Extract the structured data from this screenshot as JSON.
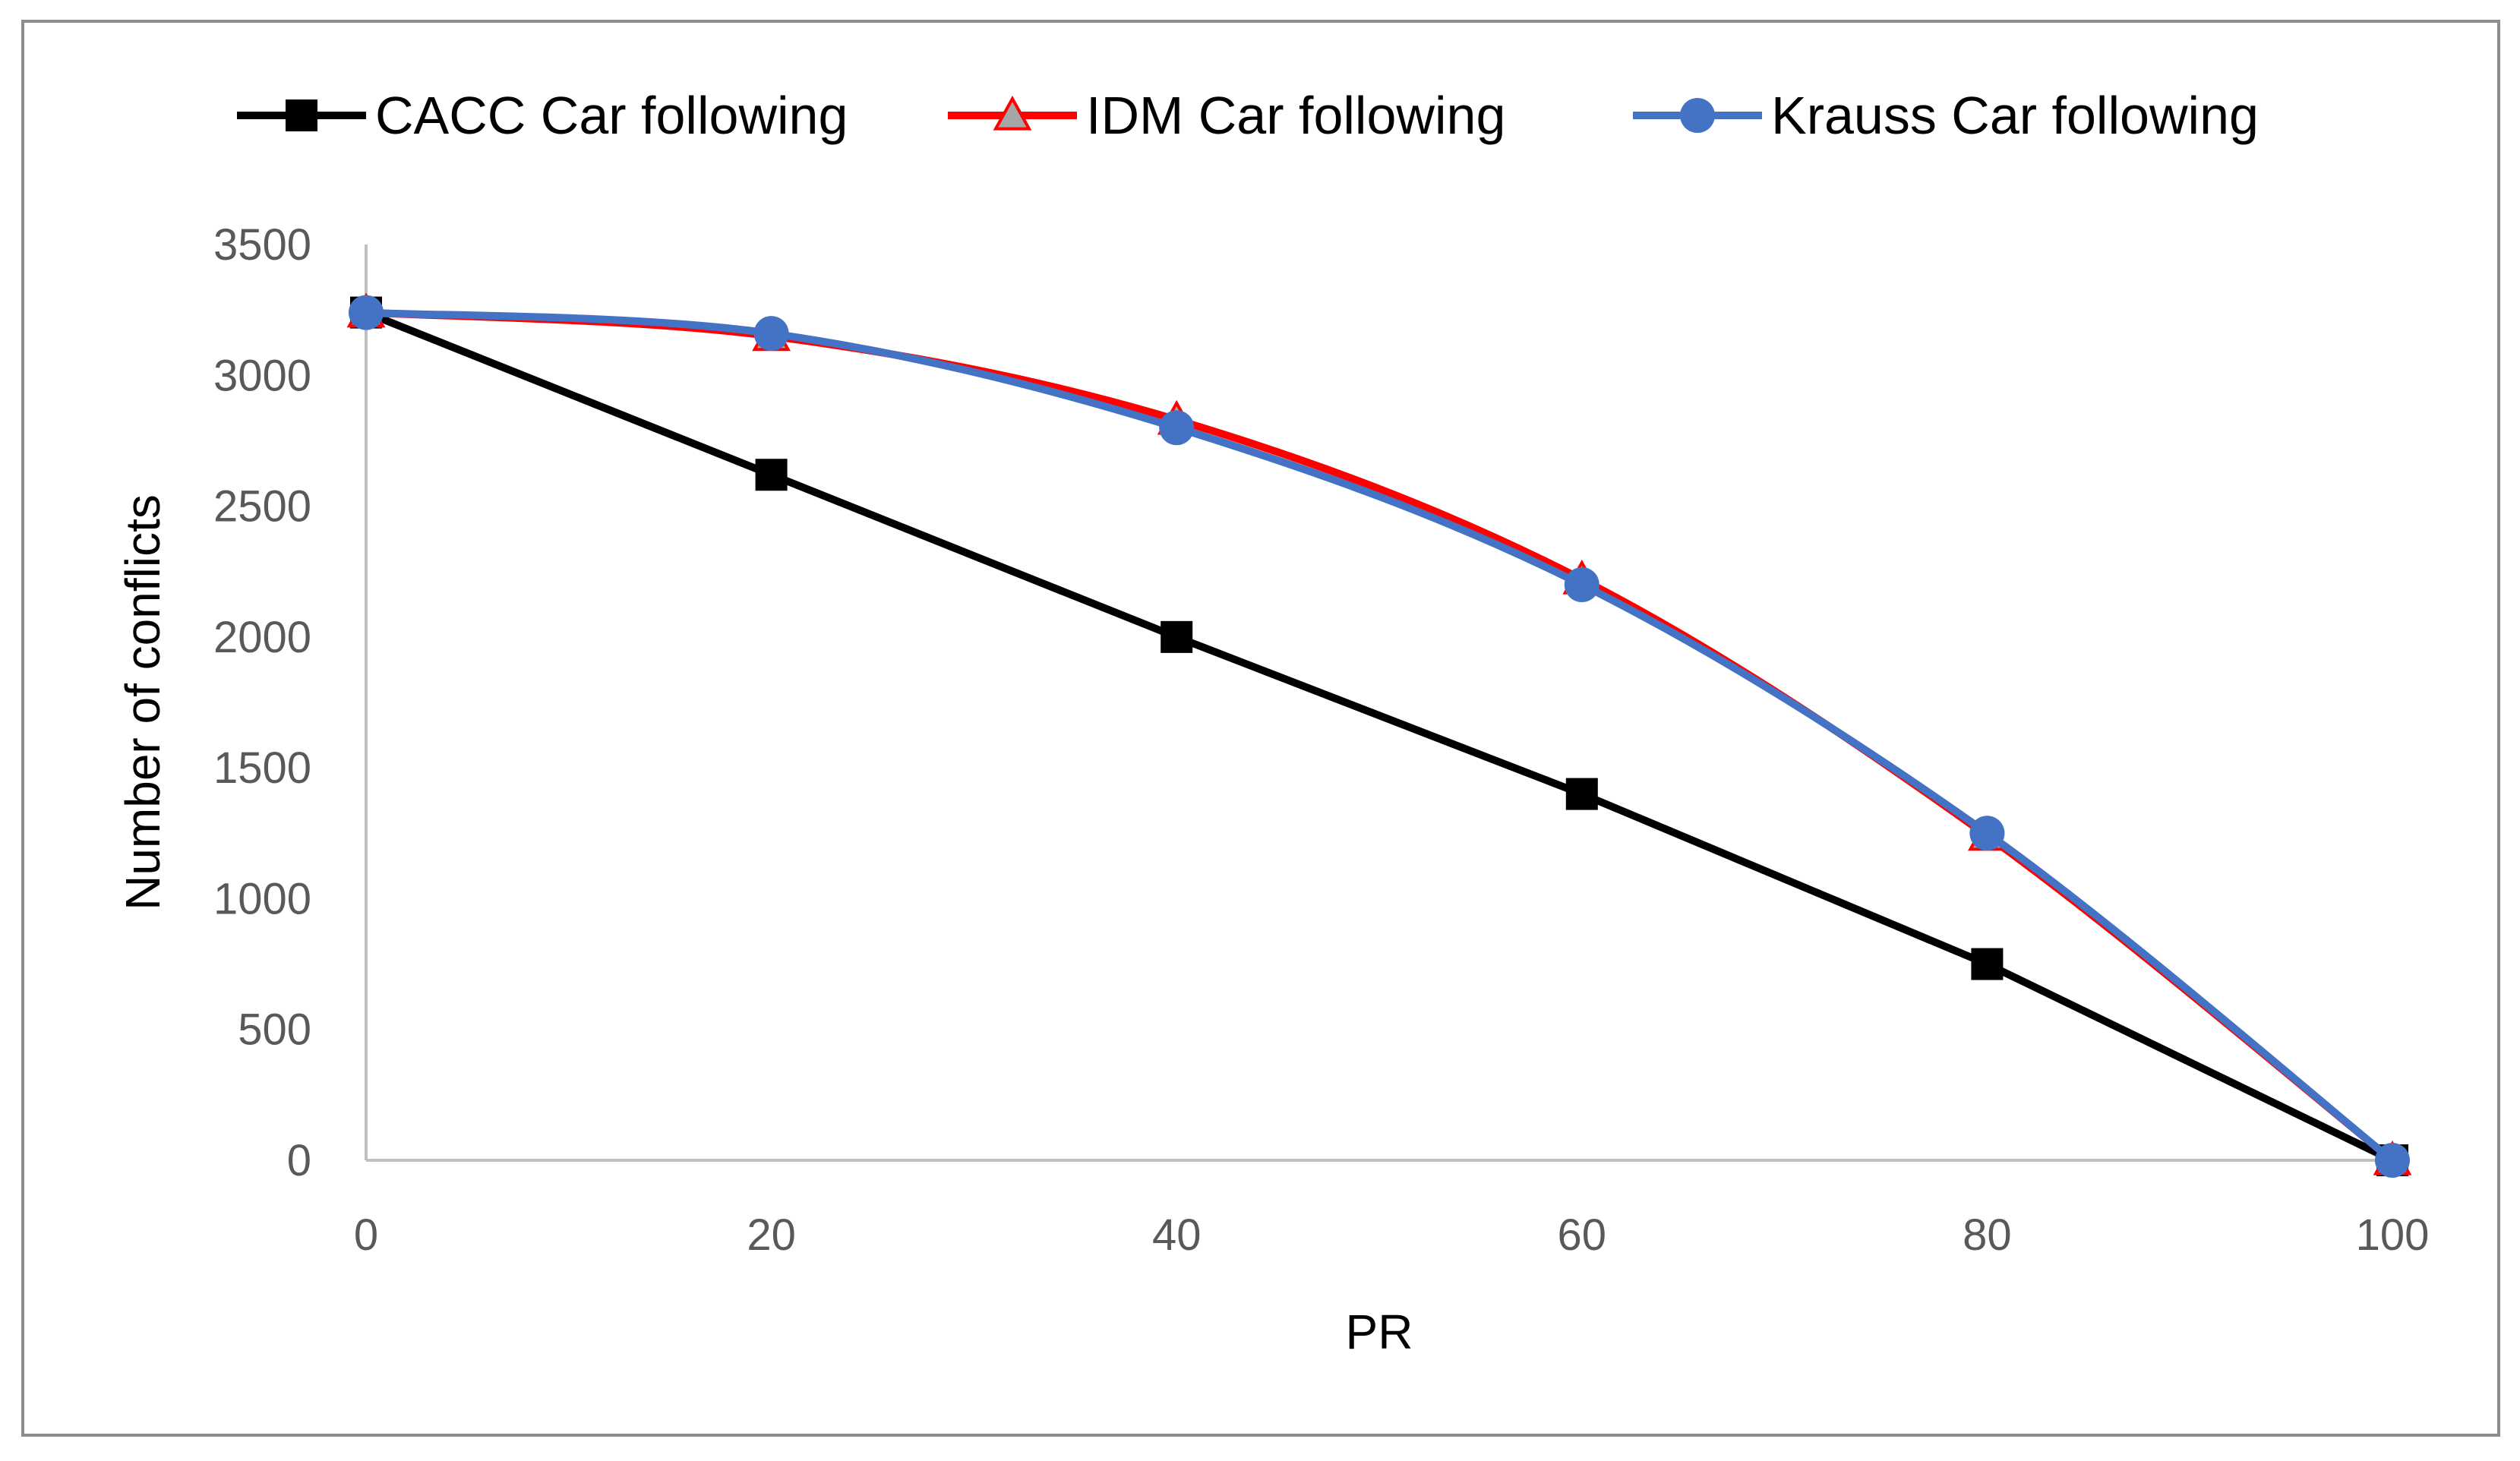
{
  "chart_data": {
    "type": "line",
    "title": "",
    "xlabel": "PR",
    "ylabel": "Number of conflicts",
    "x": [
      0,
      20,
      40,
      60,
      80,
      100
    ],
    "xlim": [
      0,
      100
    ],
    "ylim": [
      0,
      3500
    ],
    "x_ticks": [
      "0",
      "20",
      "40",
      "60",
      "80",
      "100"
    ],
    "y_ticks": [
      "0",
      "500",
      "1000",
      "1500",
      "2000",
      "2500",
      "3000",
      "3500"
    ],
    "grid": false,
    "legend_position": "top",
    "series": [
      {
        "name": "CACC Car following",
        "values": [
          3240,
          2620,
          2000,
          1400,
          750,
          0
        ],
        "color": "#000000",
        "marker": "square",
        "smooth": false
      },
      {
        "name": "IDM Car following",
        "values": [
          3240,
          3150,
          2830,
          2220,
          1240,
          0
        ],
        "color": "#ff0000",
        "marker": "triangle",
        "smooth": true
      },
      {
        "name": "Krauss Car following",
        "values": [
          3240,
          3160,
          2800,
          2200,
          1250,
          0
        ],
        "color": "#4472c4",
        "marker": "circle",
        "smooth": true
      }
    ]
  }
}
